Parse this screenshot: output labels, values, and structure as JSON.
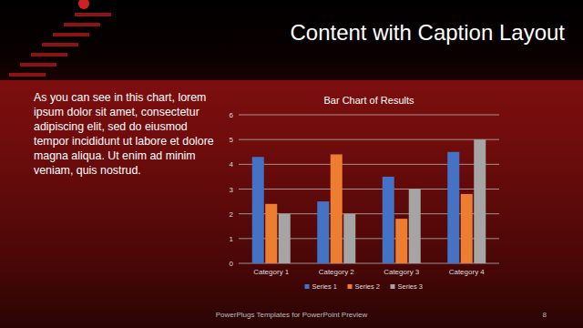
{
  "slide": {
    "title": "Content with Caption Layout",
    "caption": "As you can see in this chart, lorem ipsum dolor sit amet, consectetur adipiscing elit, sed do eiusmod tempor incididunt ut labore et dolore magna aliqua. Ut enim ad minim veniam, quis nostrud.",
    "footer": "PowerPlugs Templates for PowerPoint Preview",
    "page_number": "8"
  },
  "chart_data": {
    "type": "bar",
    "title": "Bar Chart of Results",
    "categories": [
      "Category 1",
      "Category 2",
      "Category 3",
      "Category 4"
    ],
    "series": [
      {
        "name": "Series 1",
        "color": "#4472c4",
        "values": [
          4.3,
          2.5,
          3.5,
          4.5
        ]
      },
      {
        "name": "Series 2",
        "color": "#ed7d31",
        "values": [
          2.4,
          4.4,
          1.8,
          2.8
        ]
      },
      {
        "name": "Series 3",
        "color": "#a5a5a5",
        "values": [
          2,
          2,
          3,
          5
        ]
      }
    ],
    "ylim": [
      0,
      6
    ],
    "yticks": [
      0,
      1,
      2,
      3,
      4,
      5,
      6
    ],
    "grid": true,
    "legend": "bottom"
  }
}
